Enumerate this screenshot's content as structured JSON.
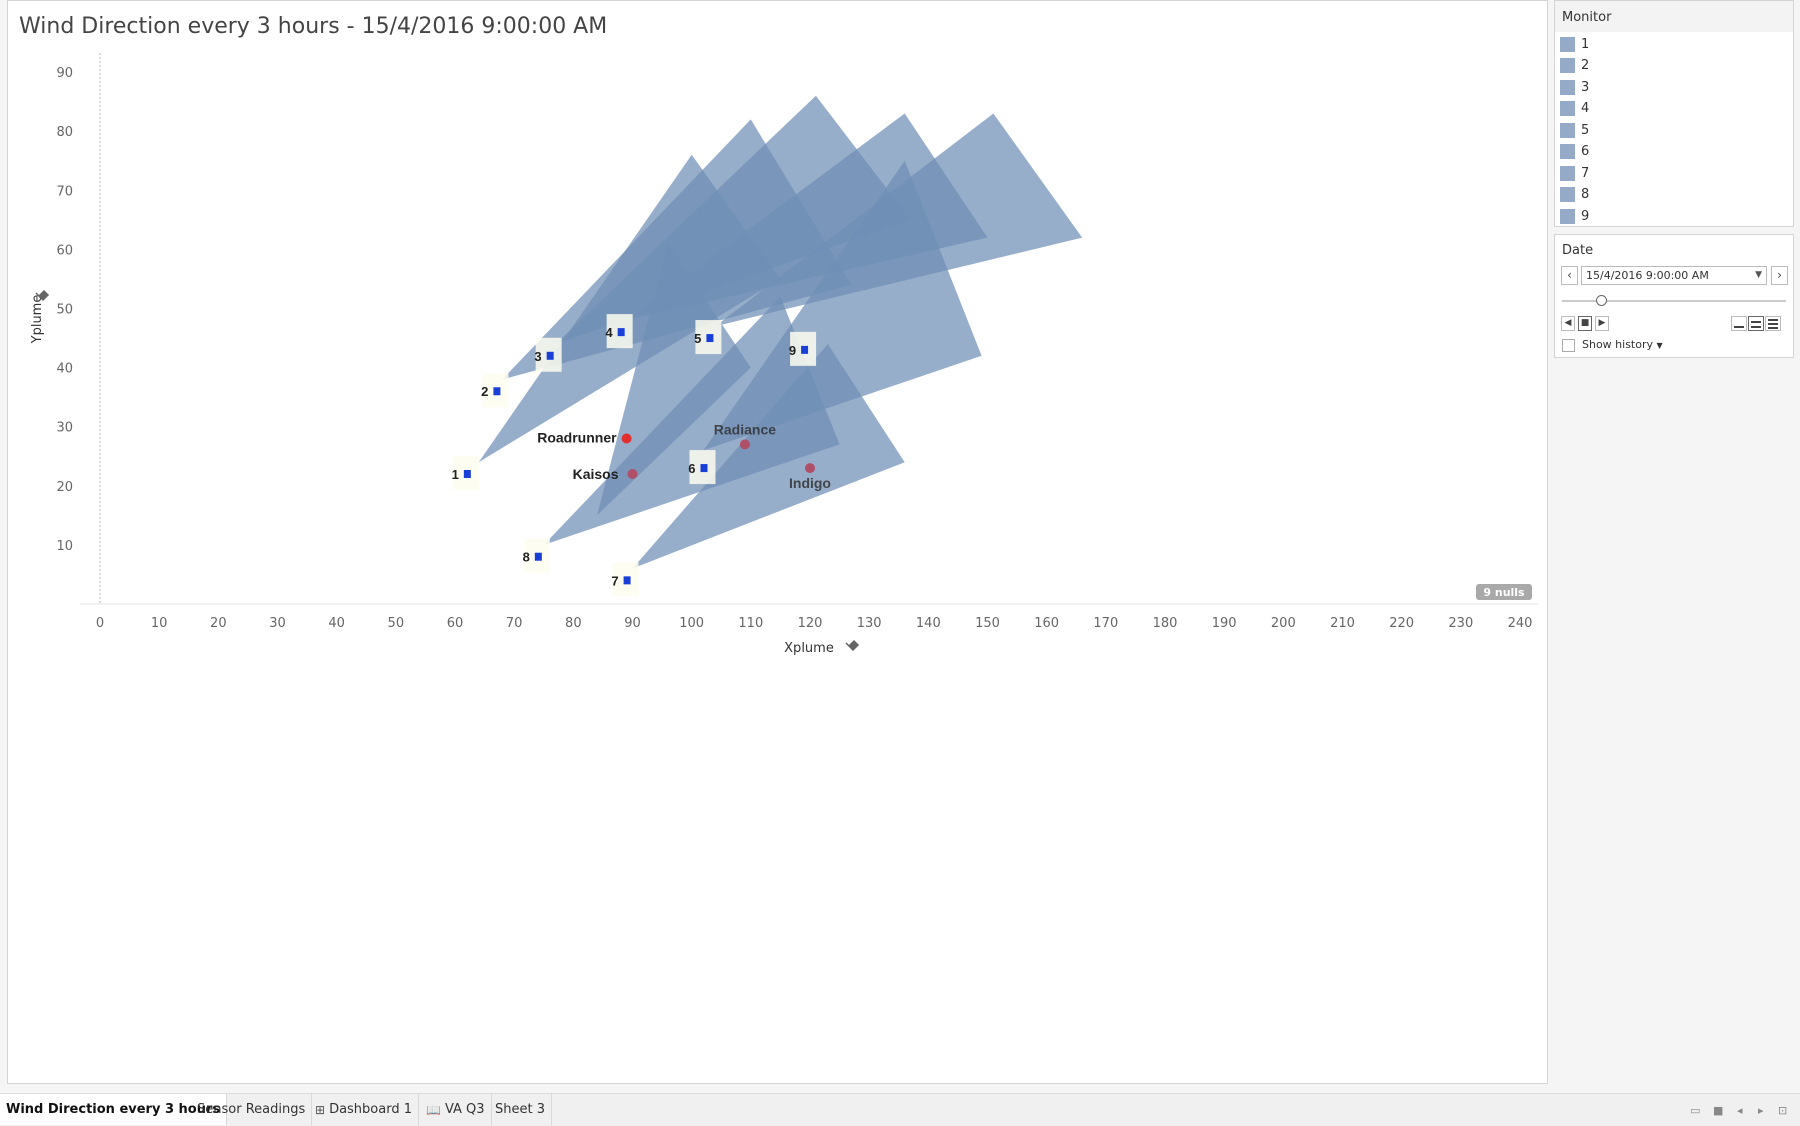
{
  "sheet": {
    "title": "Wind Direction every 3 hours - 15/4/2016 9:00:00 AM",
    "nulls_badge": "9 nulls"
  },
  "chart_data": {
    "type": "scatter",
    "xlabel": "Xplume",
    "ylabel": "Yplume",
    "xlim": [
      0,
      240
    ],
    "ylim": [
      0,
      90
    ],
    "x_ticks": [
      0,
      10,
      20,
      30,
      40,
      50,
      60,
      70,
      80,
      90,
      100,
      110,
      120,
      130,
      140,
      150,
      160,
      170,
      180,
      190,
      200,
      210,
      220,
      230,
      240
    ],
    "y_ticks": [
      10,
      20,
      30,
      40,
      50,
      60,
      70,
      80,
      90
    ],
    "grid": false,
    "plume_color": "#6f8fb6",
    "monitors": [
      {
        "label": "1",
        "x": 62,
        "y": 22,
        "plume": [
          [
            64,
            24
          ],
          [
            100,
            76
          ],
          [
            115,
            55
          ]
        ]
      },
      {
        "label": "2",
        "x": 67,
        "y": 36,
        "plume": [
          [
            68,
            38
          ],
          [
            110,
            82
          ],
          [
            127,
            54
          ]
        ]
      },
      {
        "label": "3",
        "x": 76,
        "y": 42,
        "plume": [
          [
            77,
            44
          ],
          [
            121,
            86
          ],
          [
            137,
            65
          ]
        ]
      },
      {
        "label": "4",
        "x": 88,
        "y": 46,
        "plume": [
          [
            89,
            48
          ],
          [
            136,
            83
          ],
          [
            150,
            62
          ]
        ]
      },
      {
        "label": "5",
        "x": 103,
        "y": 45,
        "plume": [
          [
            104,
            47
          ],
          [
            151,
            83
          ],
          [
            166,
            62
          ]
        ]
      },
      {
        "label": "6",
        "x": 102,
        "y": 23,
        "plume": [
          [
            84,
            15
          ],
          [
            96,
            61
          ],
          [
            110,
            40
          ]
        ]
      },
      {
        "label": "7",
        "x": 89,
        "y": 4,
        "plume": [
          [
            90,
            6
          ],
          [
            123,
            44
          ],
          [
            136,
            24
          ]
        ]
      },
      {
        "label": "8",
        "x": 74,
        "y": 8,
        "plume": [
          [
            75,
            10
          ],
          [
            115,
            52
          ],
          [
            125,
            27
          ]
        ]
      },
      {
        "label": "9",
        "x": 119,
        "y": 43,
        "plume": [
          [
            102,
            26
          ],
          [
            136,
            75
          ],
          [
            149,
            42
          ]
        ]
      }
    ],
    "stations": [
      {
        "name": "Roadrunner",
        "x": 89,
        "y": 28,
        "color": "#e03030"
      },
      {
        "name": "Kaisos",
        "x": 90,
        "y": 22,
        "color": "#b05068"
      },
      {
        "name": "Radiance",
        "x": 109,
        "y": 27,
        "color": "#b05068"
      },
      {
        "name": "Indigo",
        "x": 120,
        "y": 23,
        "color": "#b05068"
      }
    ]
  },
  "legend": {
    "title": "Monitor",
    "swatch_color": "#94aac6",
    "items": [
      "1",
      "2",
      "3",
      "4",
      "5",
      "6",
      "7",
      "8",
      "9"
    ]
  },
  "date_filter": {
    "title": "Date",
    "value": "15/4/2016 9:00:00 AM",
    "show_history_label": "Show history"
  },
  "tabs": [
    {
      "label": "Wind Direction every 3 hours",
      "icon": "",
      "active": true
    },
    {
      "label": "Sensor Readings",
      "icon": "",
      "active": false
    },
    {
      "label": "Dashboard 1",
      "icon": "grid-icon",
      "active": false
    },
    {
      "label": "VA Q3",
      "icon": "story-icon",
      "active": false
    },
    {
      "label": "Sheet 3",
      "icon": "",
      "active": false
    }
  ]
}
